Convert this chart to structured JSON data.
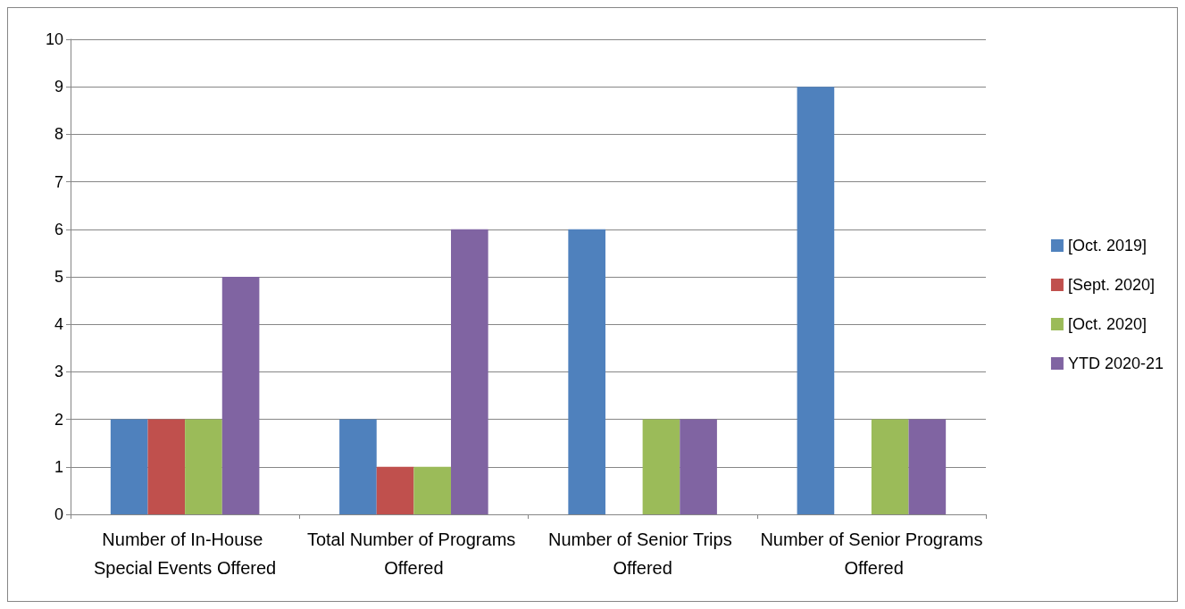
{
  "chart_data": {
    "type": "bar",
    "categories": [
      "Number of In-House Special Events Offered",
      "Total Number of Programs Offered",
      "Number of Senior Trips Offered",
      "Number of Senior Programs Offered"
    ],
    "series": [
      {
        "name": "[Oct. 2019]",
        "color": "#4f81bd",
        "values": [
          2,
          2,
          6,
          9
        ]
      },
      {
        "name": "[Sept. 2020]",
        "color": "#c0504d",
        "values": [
          2,
          1,
          0,
          0
        ]
      },
      {
        "name": "[Oct. 2020]",
        "color": "#9bbb59",
        "values": [
          2,
          1,
          2,
          2
        ]
      },
      {
        "name": "YTD 2020-21",
        "color": "#8064a2",
        "values": [
          5,
          6,
          2,
          2
        ]
      }
    ],
    "ylim": [
      0,
      10
    ],
    "yticks": [
      0,
      1,
      2,
      3,
      4,
      5,
      6,
      7,
      8,
      9,
      10
    ],
    "grid": "y",
    "legend": "right"
  }
}
